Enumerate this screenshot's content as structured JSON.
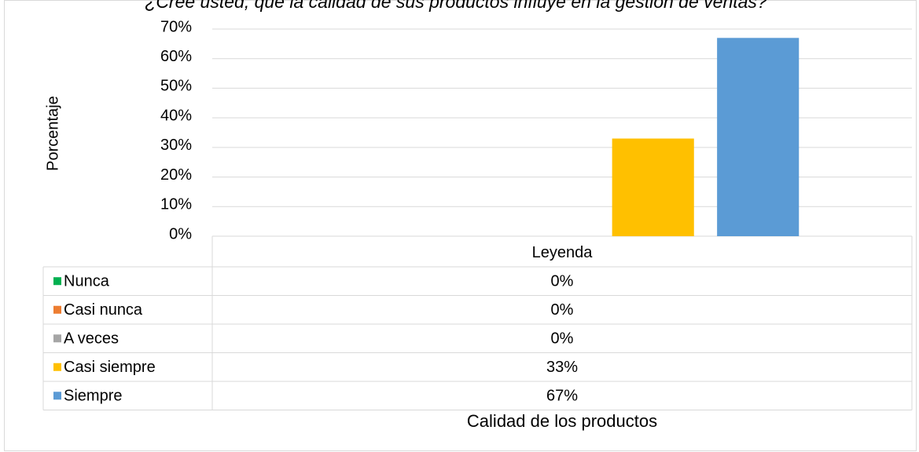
{
  "chart_data": {
    "type": "bar",
    "title": "¿Cree usted, que la calidad de sus productos influye en la gestión de ventas?",
    "ylabel": "Porcentaje",
    "xlabel": "Calidad de los productos",
    "categories": [
      "Leyenda"
    ],
    "series": [
      {
        "name": "Nunca",
        "color": "#00b050",
        "values": [
          0
        ],
        "value_labels": [
          "0%"
        ]
      },
      {
        "name": "Casi nunca",
        "color": "#ed7d31",
        "values": [
          0
        ],
        "value_labels": [
          "0%"
        ]
      },
      {
        "name": "A veces",
        "color": "#a5a5a5",
        "values": [
          0
        ],
        "value_labels": [
          "0%"
        ]
      },
      {
        "name": "Casi siempre",
        "color": "#ffc000",
        "values": [
          33
        ],
        "value_labels": [
          "33%"
        ]
      },
      {
        "name": "Siempre",
        "color": "#5b9bd5",
        "values": [
          67
        ],
        "value_labels": [
          "67%"
        ]
      }
    ],
    "ylim": [
      0,
      70
    ],
    "yticks": [
      {
        "value": 0,
        "label": "0%"
      },
      {
        "value": 10,
        "label": "10%"
      },
      {
        "value": 20,
        "label": "20%"
      },
      {
        "value": 30,
        "label": "30%"
      },
      {
        "value": 40,
        "label": "40%"
      },
      {
        "value": 50,
        "label": "50%"
      },
      {
        "value": 60,
        "label": "60%"
      },
      {
        "value": 70,
        "label": "70%"
      }
    ],
    "grid": true
  }
}
